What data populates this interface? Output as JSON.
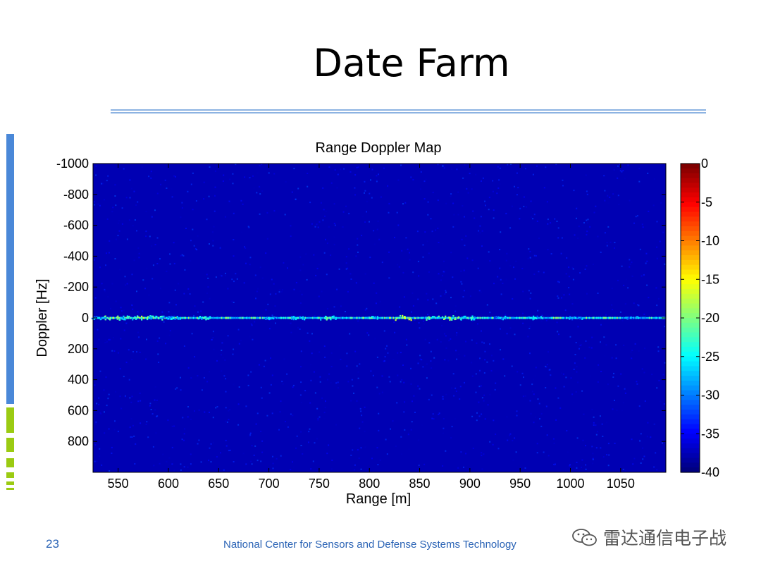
{
  "slide": {
    "title": "Date Farm",
    "page_number": "23",
    "footer": "National Center for Sensors and Defense Systems Technology",
    "watermark": "雷达通信电子战"
  },
  "colors": {
    "accent_blue": "#4a88d8",
    "accent_green": "#9bcb12",
    "footer_text": "#2a63b5"
  },
  "chart_data": {
    "type": "heatmap",
    "title": "Range Doppler Map",
    "xlabel": "Range [m]",
    "ylabel": "Doppler [Hz]",
    "xlim": [
      525,
      1095
    ],
    "ylim": [
      -1000,
      1000
    ],
    "x_ticks": [
      550,
      600,
      650,
      700,
      750,
      800,
      850,
      900,
      950,
      1000,
      1050
    ],
    "y_ticks": [
      -1000,
      -800,
      -600,
      -400,
      -200,
      0,
      200,
      400,
      600,
      800
    ],
    "y_axis_reversed": true,
    "colorbar": {
      "colormap": "jet",
      "range": [
        -40,
        0
      ],
      "ticks": [
        0,
        -5,
        -10,
        -15,
        -20,
        -25,
        -30,
        -35,
        -40
      ]
    },
    "background_level_db": -38,
    "zero_doppler_returns": [
      {
        "range": 530,
        "level_db": -26
      },
      {
        "range": 545,
        "level_db": -18
      },
      {
        "range": 560,
        "level_db": -22
      },
      {
        "range": 575,
        "level_db": -17
      },
      {
        "range": 590,
        "level_db": -21
      },
      {
        "range": 598,
        "level_db": -26
      },
      {
        "range": 605,
        "level_db": -24
      },
      {
        "range": 635,
        "level_db": -22
      },
      {
        "range": 700,
        "level_db": -26
      },
      {
        "range": 728,
        "level_db": -24
      },
      {
        "range": 758,
        "level_db": -20
      },
      {
        "range": 800,
        "level_db": -23
      },
      {
        "range": 835,
        "level_db": -15
      },
      {
        "range": 860,
        "level_db": -20
      },
      {
        "range": 880,
        "level_db": -17
      },
      {
        "range": 898,
        "level_db": -22
      },
      {
        "range": 930,
        "level_db": -26
      },
      {
        "range": 965,
        "level_db": -24
      },
      {
        "range": 1005,
        "level_db": -26
      },
      {
        "range": 1060,
        "level_db": -27
      }
    ]
  }
}
